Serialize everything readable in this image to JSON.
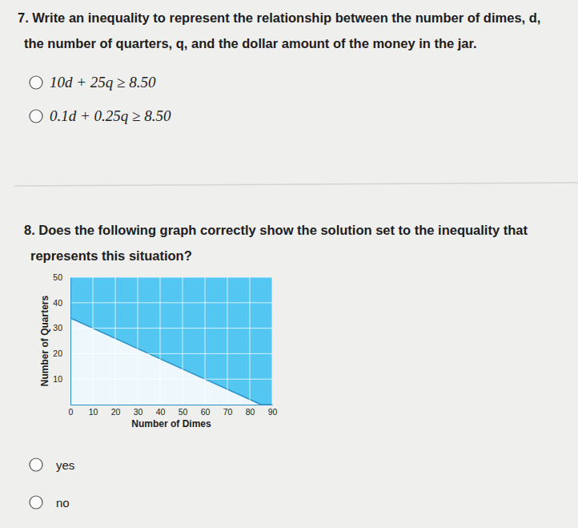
{
  "questions": [
    {
      "lines": [
        "7. Write an inequality to represent the relationship between the number of dimes, d,",
        "the number of quarters, q, and the dollar amount of the money in the jar."
      ],
      "options": [
        "10d + 25q ≥ 8.50",
        "0.1d + 0.25q ≥ 8.50"
      ]
    },
    {
      "lines": [
        "8. Does the following graph correctly show the solution set to the inequality that",
        "represents this situation?"
      ],
      "options": [
        "yes",
        "no"
      ]
    }
  ],
  "chart_data": {
    "type": "area",
    "x": [
      0,
      85,
      90
    ],
    "values": [
      34,
      0,
      0
    ],
    "color": "#54c6f2",
    "xlim": [
      0,
      90
    ],
    "ylim": [
      0,
      50
    ],
    "xticks": [
      0,
      10,
      20,
      30,
      40,
      50,
      60,
      70,
      80,
      90
    ],
    "yticks": [
      10,
      20,
      30,
      40,
      50
    ],
    "x_label": "Number of Dimes",
    "y_label": "Number of Quarters",
    "grid": true
  }
}
